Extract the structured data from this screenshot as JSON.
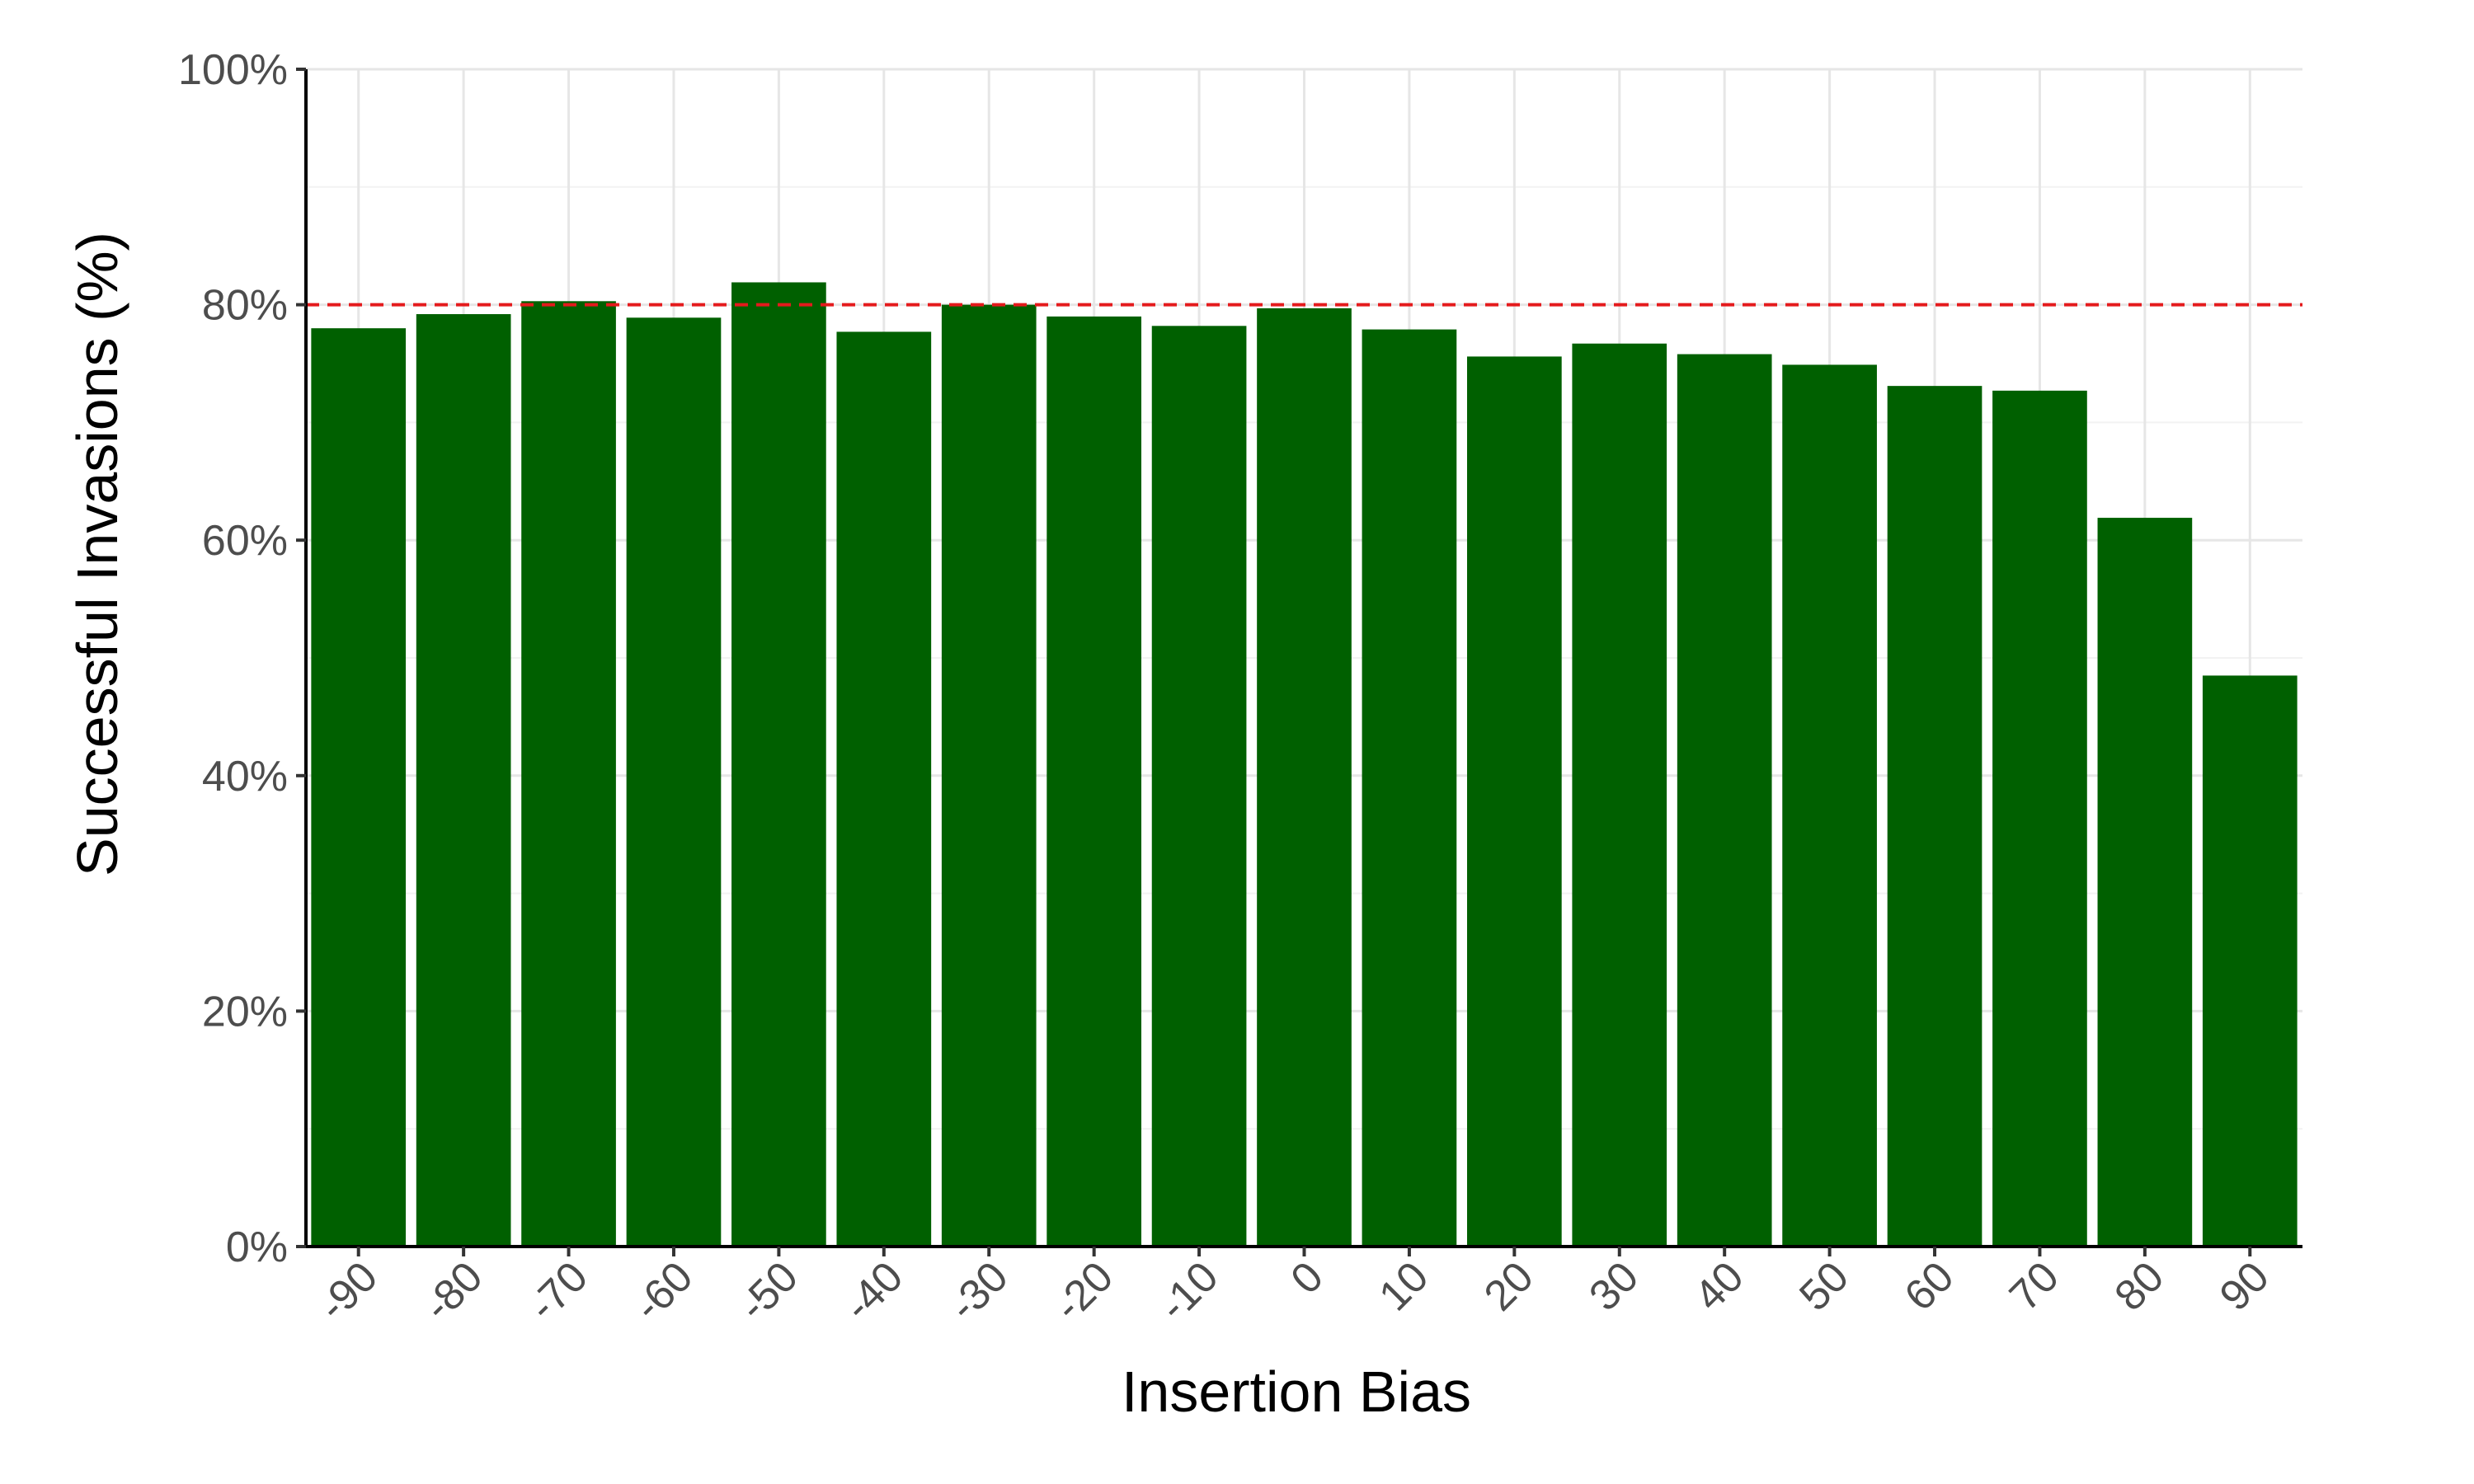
{
  "chart_data": {
    "type": "bar",
    "title": "",
    "xlabel": "Insertion Bias",
    "ylabel": "Successful Invasions (%)",
    "categories": [
      "-90",
      "-80",
      "-70",
      "-60",
      "-50",
      "-40",
      "-30",
      "-20",
      "-10",
      "0",
      "10",
      "20",
      "30",
      "40",
      "50",
      "60",
      "70",
      "80",
      "90"
    ],
    "values": [
      78.0,
      79.2,
      80.3,
      78.9,
      81.9,
      77.7,
      80.0,
      79.0,
      78.2,
      79.7,
      77.9,
      75.6,
      76.7,
      75.8,
      74.9,
      73.1,
      72.7,
      61.9,
      48.5
    ],
    "ylim": [
      0,
      100
    ],
    "yticks": [
      0,
      20,
      40,
      60,
      80,
      100
    ],
    "ytick_labels": [
      "0%",
      "20%",
      "40%",
      "60%",
      "80%",
      "100%"
    ],
    "reference_line": {
      "y": 80,
      "style": "dashed",
      "color": "#e41a1c"
    },
    "bar_color": "#006000",
    "grid": true,
    "legend": "none"
  }
}
